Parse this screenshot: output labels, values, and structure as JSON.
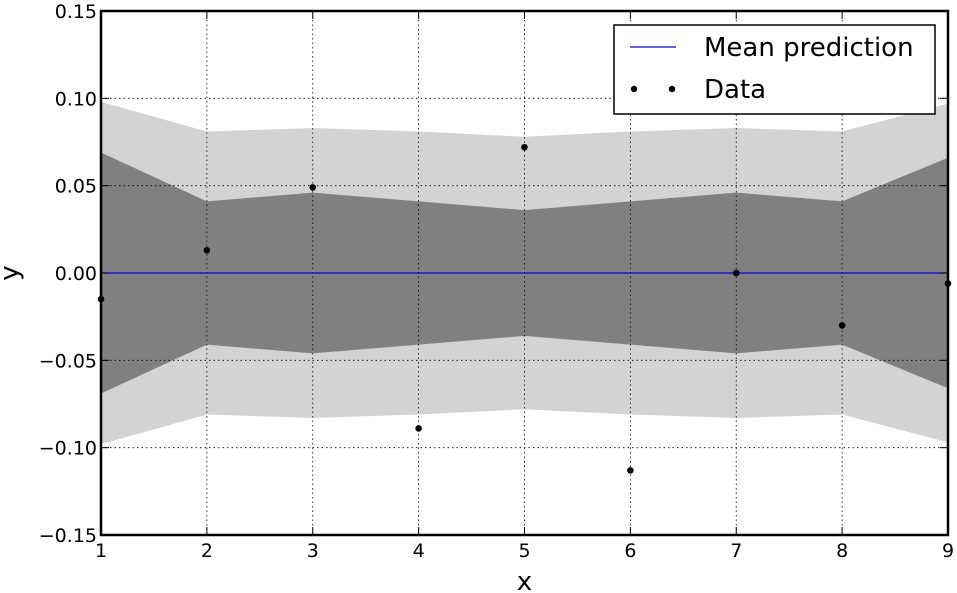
{
  "chart_data": {
    "type": "line",
    "title": "",
    "xlabel": "x",
    "ylabel": "y",
    "xlim": [
      1,
      9
    ],
    "ylim": [
      -0.15,
      0.15
    ],
    "xticks": [
      1,
      2,
      3,
      4,
      5,
      6,
      7,
      8,
      9
    ],
    "xtick_labels": [
      "1",
      "2",
      "3",
      "4",
      "5",
      "6",
      "7",
      "8",
      "9"
    ],
    "yticks": [
      -0.15,
      -0.1,
      -0.05,
      0.0,
      0.05,
      0.1,
      0.15
    ],
    "ytick_labels": [
      "−0.15",
      "−0.10",
      "−0.05",
      "0.00",
      "0.05",
      "0.10",
      "0.15"
    ],
    "grid": true,
    "legend_position": "top-right",
    "series": [
      {
        "name": "Mean prediction",
        "kind": "line",
        "color": "#0000ff",
        "x": [
          1,
          2,
          3,
          4,
          5,
          6,
          7,
          8,
          9
        ],
        "y": [
          0,
          0,
          0,
          0,
          0,
          0,
          0,
          0,
          0
        ]
      },
      {
        "name": "Data",
        "kind": "scatter",
        "color": "#000000",
        "x": [
          1,
          2,
          3,
          4,
          5,
          6,
          7,
          8,
          9
        ],
        "y": [
          -0.015,
          0.013,
          0.049,
          -0.089,
          0.072,
          -0.113,
          0.0,
          -0.03,
          -0.006
        ]
      }
    ],
    "bands": [
      {
        "label": "outer",
        "color": "#d3d3d3",
        "x": [
          1,
          2,
          3,
          4,
          5,
          6,
          7,
          8,
          9
        ],
        "lower": [
          -0.098,
          -0.081,
          -0.083,
          -0.081,
          -0.078,
          -0.081,
          -0.083,
          -0.081,
          -0.097
        ],
        "upper": [
          0.098,
          0.081,
          0.083,
          0.081,
          0.078,
          0.081,
          0.083,
          0.081,
          0.097
        ]
      },
      {
        "label": "inner",
        "color": "#808080",
        "x": [
          1,
          2,
          3,
          4,
          5,
          6,
          7,
          8,
          9
        ],
        "lower": [
          -0.069,
          -0.041,
          -0.046,
          -0.041,
          -0.036,
          -0.041,
          -0.046,
          -0.041,
          -0.066
        ],
        "upper": [
          0.069,
          0.041,
          0.046,
          0.041,
          0.036,
          0.041,
          0.046,
          0.041,
          0.066
        ]
      }
    ]
  }
}
